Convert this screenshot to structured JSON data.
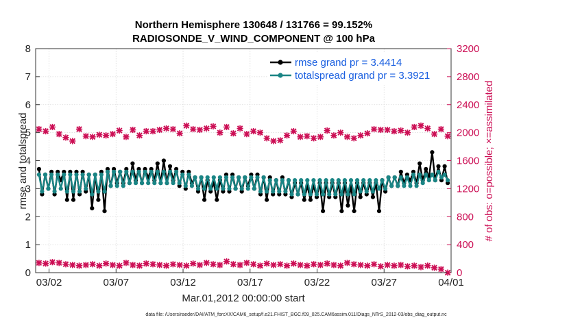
{
  "chart_data": {
    "type": "line",
    "title_line1": "Northern Hemisphere 130648 / 131766 = 99.152%",
    "title_line2": "RADIOSONDE_V_WIND_COMPONENT @ 100 hPa",
    "xlabel": "Mar.01,2012 00:00:00 start",
    "ylabel": "rmse and totalspread",
    "y2label": "# of obs: o=possible; ×=assimilated",
    "footnote": "data file: /Users/raeder/DAI/ATM_forcXX/CAM6_setup/f.e21.FHIST_BGC.f09_025.CAM6assim.011/Diags_NTrS_2012-03/obs_diag_output.nc",
    "xlim": [
      0.5,
      31.5
    ],
    "ylim": [
      0,
      8
    ],
    "y2lim": [
      0,
      3200
    ],
    "x_ticks": [
      1.5,
      6.5,
      11.5,
      16.5,
      21.5,
      26.5,
      31.5
    ],
    "x_tick_labels": [
      "03/02",
      "03/07",
      "03/12",
      "03/17",
      "03/22",
      "03/27",
      "04/01"
    ],
    "y_ticks": [
      "0",
      "1",
      "2",
      "3",
      "4",
      "5",
      "6",
      "7",
      "8"
    ],
    "y2_ticks": [
      "0",
      "400",
      "800",
      "1200",
      "1600",
      "2000",
      "2400",
      "2800",
      "3200"
    ],
    "colors": {
      "rmse": "#000000",
      "spread": "#1a8585",
      "obs": "#cc0f55",
      "legend_text": "#1a5fe0"
    },
    "series": [
      {
        "name": "rmse grand pr = 3.4414",
        "values": [
          3.7,
          2.8,
          3.5,
          3.0,
          3.6,
          2.8,
          3.6,
          3.3,
          3.6,
          2.6,
          3.6,
          2.6,
          3.6,
          2.8,
          3.6,
          2.9,
          3.5,
          2.3,
          3.5,
          2.6,
          3.6,
          2.2,
          3.7,
          3.1,
          3.7,
          3.2,
          3.6,
          3.2,
          3.7,
          3.2,
          3.9,
          3.3,
          3.7,
          3.2,
          3.7,
          3.4,
          3.7,
          3.3,
          3.9,
          3.2,
          4.0,
          3.2,
          3.8,
          3.3,
          3.7,
          3.1,
          3.6,
          3.0,
          3.6,
          3.2,
          3.4,
          2.9,
          3.4,
          2.6,
          3.3,
          2.9,
          3.2,
          2.6,
          3.3,
          2.9,
          3.5,
          2.9,
          3.5,
          3.0,
          3.4,
          2.9,
          3.4,
          3.1,
          3.5,
          3.0,
          3.5,
          2.8,
          3.4,
          2.6,
          3.4,
          2.8,
          3.3,
          2.8,
          3.4,
          2.8,
          3.3,
          2.7,
          3.2,
          2.8,
          3.2,
          2.6,
          3.1,
          2.6,
          3.1,
          2.7,
          3.2,
          2.2,
          3.2,
          2.7,
          3.2,
          2.7,
          3.2,
          2.2,
          3.2,
          2.4,
          3.1,
          2.2,
          3.2,
          2.7,
          3.2,
          2.8,
          3.2,
          2.7,
          3.2,
          2.2,
          3.3,
          2.9,
          3.4,
          3.1,
          3.4,
          3.1,
          3.6,
          3.2,
          3.5,
          3.3,
          3.6,
          3.2,
          3.9,
          3.3,
          3.7,
          3.4,
          4.3,
          3.3,
          3.8,
          3.3,
          3.8,
          3.2
        ],
        "color": "#000000"
      },
      {
        "name": "totalspread grand pr = 3.3921",
        "values": [
          3.5,
          2.9,
          3.5,
          3.0,
          3.5,
          2.9,
          3.5,
          3.0,
          3.5,
          2.9,
          3.5,
          2.9,
          3.5,
          2.9,
          3.5,
          3.0,
          3.5,
          2.8,
          3.5,
          2.9,
          3.5,
          2.9,
          3.6,
          3.1,
          3.6,
          3.1,
          3.6,
          3.1,
          3.6,
          3.2,
          3.6,
          3.2,
          3.6,
          3.2,
          3.6,
          3.2,
          3.6,
          3.2,
          3.6,
          3.2,
          3.6,
          3.2,
          3.6,
          3.2,
          3.6,
          3.2,
          3.5,
          3.1,
          3.5,
          3.1,
          3.4,
          3.0,
          3.4,
          3.0,
          3.4,
          3.0,
          3.4,
          3.0,
          3.4,
          3.0,
          3.4,
          3.0,
          3.4,
          3.0,
          3.4,
          3.0,
          3.4,
          3.0,
          3.4,
          3.0,
          3.4,
          2.9,
          3.4,
          2.9,
          3.3,
          2.9,
          3.3,
          2.9,
          3.3,
          2.9,
          3.3,
          2.8,
          3.3,
          2.8,
          3.3,
          2.8,
          3.3,
          2.8,
          3.3,
          2.8,
          3.3,
          2.8,
          3.3,
          2.8,
          3.3,
          2.8,
          3.3,
          2.8,
          3.3,
          2.8,
          3.3,
          2.8,
          3.3,
          2.9,
          3.3,
          2.9,
          3.3,
          2.9,
          3.3,
          3.0,
          3.3,
          3.0,
          3.4,
          3.1,
          3.4,
          3.1,
          3.4,
          3.1,
          3.4,
          3.1,
          3.5,
          3.1,
          3.5,
          3.2,
          3.5,
          3.3,
          3.5,
          3.3,
          3.6,
          3.4,
          3.5,
          3.3
        ],
        "color": "#1a8585"
      },
      {
        "name": "obs possible",
        "axis": "right",
        "values": [
          2050,
          2020,
          2080,
          1980,
          1930,
          1880,
          2050,
          1950,
          1940,
          1970,
          1960,
          1980,
          2030,
          1940,
          2040,
          1960,
          2020,
          2020,
          2040,
          2060,
          2050,
          1990,
          2100,
          2050,
          2040,
          2060,
          2090,
          2000,
          2080,
          1990,
          2060,
          1980,
          2020,
          2000,
          1920,
          1880,
          1890,
          1960,
          2020,
          1940,
          1950,
          1920,
          1940,
          2030,
          1960,
          2000,
          1940,
          1920,
          1960,
          1990,
          2050,
          2040,
          2040,
          2020,
          2030,
          2000,
          2080,
          2100,
          2060,
          1980,
          2050,
          1950
        ],
        "color": "#cc0f55"
      },
      {
        "name": "obs assimilated",
        "axis": "right",
        "values": [
          140,
          130,
          150,
          140,
          120,
          110,
          100,
          110,
          120,
          100,
          130,
          110,
          100,
          140,
          110,
          100,
          130,
          120,
          110,
          100,
          120,
          110,
          100,
          130,
          110,
          140,
          120,
          110,
          160,
          120,
          110,
          140,
          120,
          100,
          130,
          110,
          120,
          100,
          130,
          110,
          100,
          120,
          110,
          130,
          110,
          100,
          140,
          120,
          110,
          100,
          120,
          90,
          110,
          100,
          110,
          90,
          100,
          80,
          100,
          70,
          50,
          0
        ],
        "color": "#cc0f55"
      }
    ],
    "legend": [
      {
        "label": "rmse grand pr = 3.4414",
        "color": "#000000"
      },
      {
        "label": "totalspread grand pr = 3.3921",
        "color": "#1a8585"
      }
    ]
  }
}
